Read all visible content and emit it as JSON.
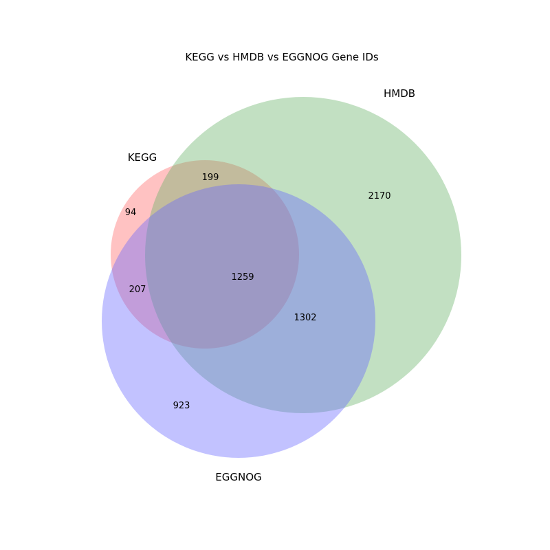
{
  "chart_data": {
    "type": "venn3",
    "title": "KEGG vs HMDB vs EGGNOG Gene IDs",
    "sets": [
      {
        "name": "KEGG",
        "color": "#ff6666"
      },
      {
        "name": "HMDB",
        "color": "#66b266"
      },
      {
        "name": "EGGNOG",
        "color": "#6666ff"
      }
    ],
    "regions": [
      {
        "sets": [
          "KEGG"
        ],
        "count": "94"
      },
      {
        "sets": [
          "HMDB"
        ],
        "count": "2170"
      },
      {
        "sets": [
          "EGGNOG"
        ],
        "count": "923"
      },
      {
        "sets": [
          "KEGG",
          "HMDB"
        ],
        "count": "199"
      },
      {
        "sets": [
          "KEGG",
          "EGGNOG"
        ],
        "count": "207"
      },
      {
        "sets": [
          "HMDB",
          "EGGNOG"
        ],
        "count": "1302"
      },
      {
        "sets": [
          "KEGG",
          "HMDB",
          "EGGNOG"
        ],
        "count": "1259"
      }
    ],
    "fill_opacity": 0.4
  }
}
